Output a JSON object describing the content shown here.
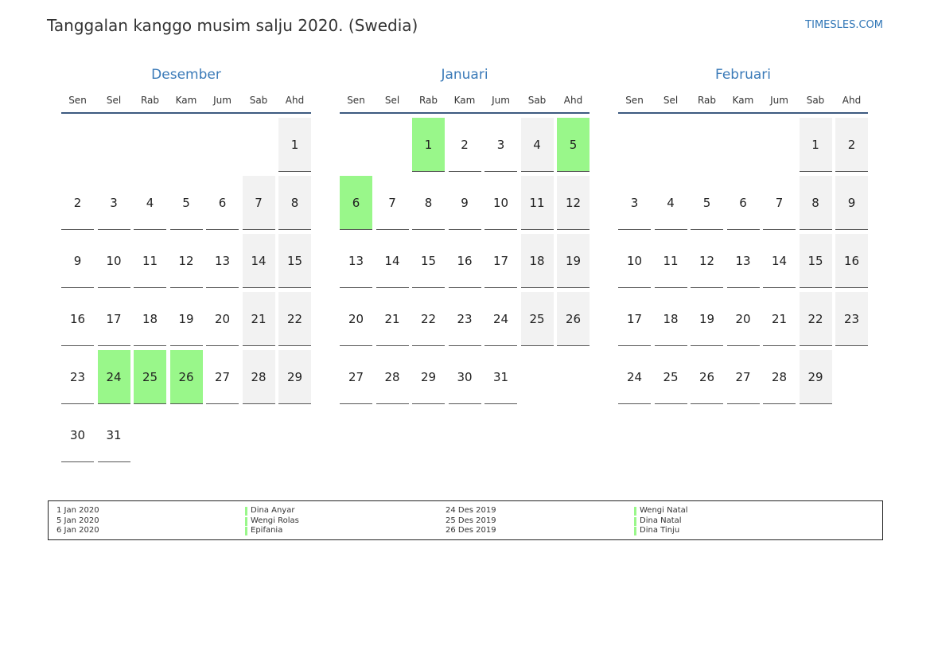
{
  "header": {
    "title": "Tanggalan kanggo musim salju 2020. (Swedia)",
    "site": "TIMESLES.COM"
  },
  "weekdays": [
    "Sen",
    "Sel",
    "Rab",
    "Kam",
    "Jum",
    "Sab",
    "Ahd"
  ],
  "holiday_color": "#99f78a",
  "weekend_color": "#f2f2f2",
  "months": [
    {
      "name": "Desember",
      "holidays": [
        24,
        25,
        26
      ],
      "weeks": [
        [
          null,
          null,
          null,
          null,
          null,
          null,
          1
        ],
        [
          2,
          3,
          4,
          5,
          6,
          7,
          8
        ],
        [
          9,
          10,
          11,
          12,
          13,
          14,
          15
        ],
        [
          16,
          17,
          18,
          19,
          20,
          21,
          22
        ],
        [
          23,
          24,
          25,
          26,
          27,
          28,
          29
        ],
        [
          30,
          31,
          null,
          null,
          null,
          null,
          null
        ]
      ]
    },
    {
      "name": "Januari",
      "holidays": [
        1,
        5,
        6
      ],
      "weeks": [
        [
          null,
          null,
          1,
          2,
          3,
          4,
          5
        ],
        [
          6,
          7,
          8,
          9,
          10,
          11,
          12
        ],
        [
          13,
          14,
          15,
          16,
          17,
          18,
          19
        ],
        [
          20,
          21,
          22,
          23,
          24,
          25,
          26
        ],
        [
          27,
          28,
          29,
          30,
          31,
          null,
          null
        ]
      ]
    },
    {
      "name": "Februari",
      "holidays": [],
      "weeks": [
        [
          null,
          null,
          null,
          null,
          null,
          1,
          2
        ],
        [
          3,
          4,
          5,
          6,
          7,
          8,
          9
        ],
        [
          10,
          11,
          12,
          13,
          14,
          15,
          16
        ],
        [
          17,
          18,
          19,
          20,
          21,
          22,
          23
        ],
        [
          24,
          25,
          26,
          27,
          28,
          29,
          null
        ]
      ]
    }
  ],
  "legend": {
    "columns": [
      [
        {
          "date": "1 Jan 2020",
          "name": "Dina Anyar"
        },
        {
          "date": "5 Jan 2020",
          "name": "Wengi Rolas"
        },
        {
          "date": "6 Jan 2020",
          "name": "Epifania"
        }
      ],
      [
        {
          "date": "24 Des 2019",
          "name": "Wengi Natal"
        },
        {
          "date": "25 Des 2019",
          "name": "Dina Natal"
        },
        {
          "date": "26 Des 2019",
          "name": "Dina Tinju"
        }
      ]
    ]
  }
}
